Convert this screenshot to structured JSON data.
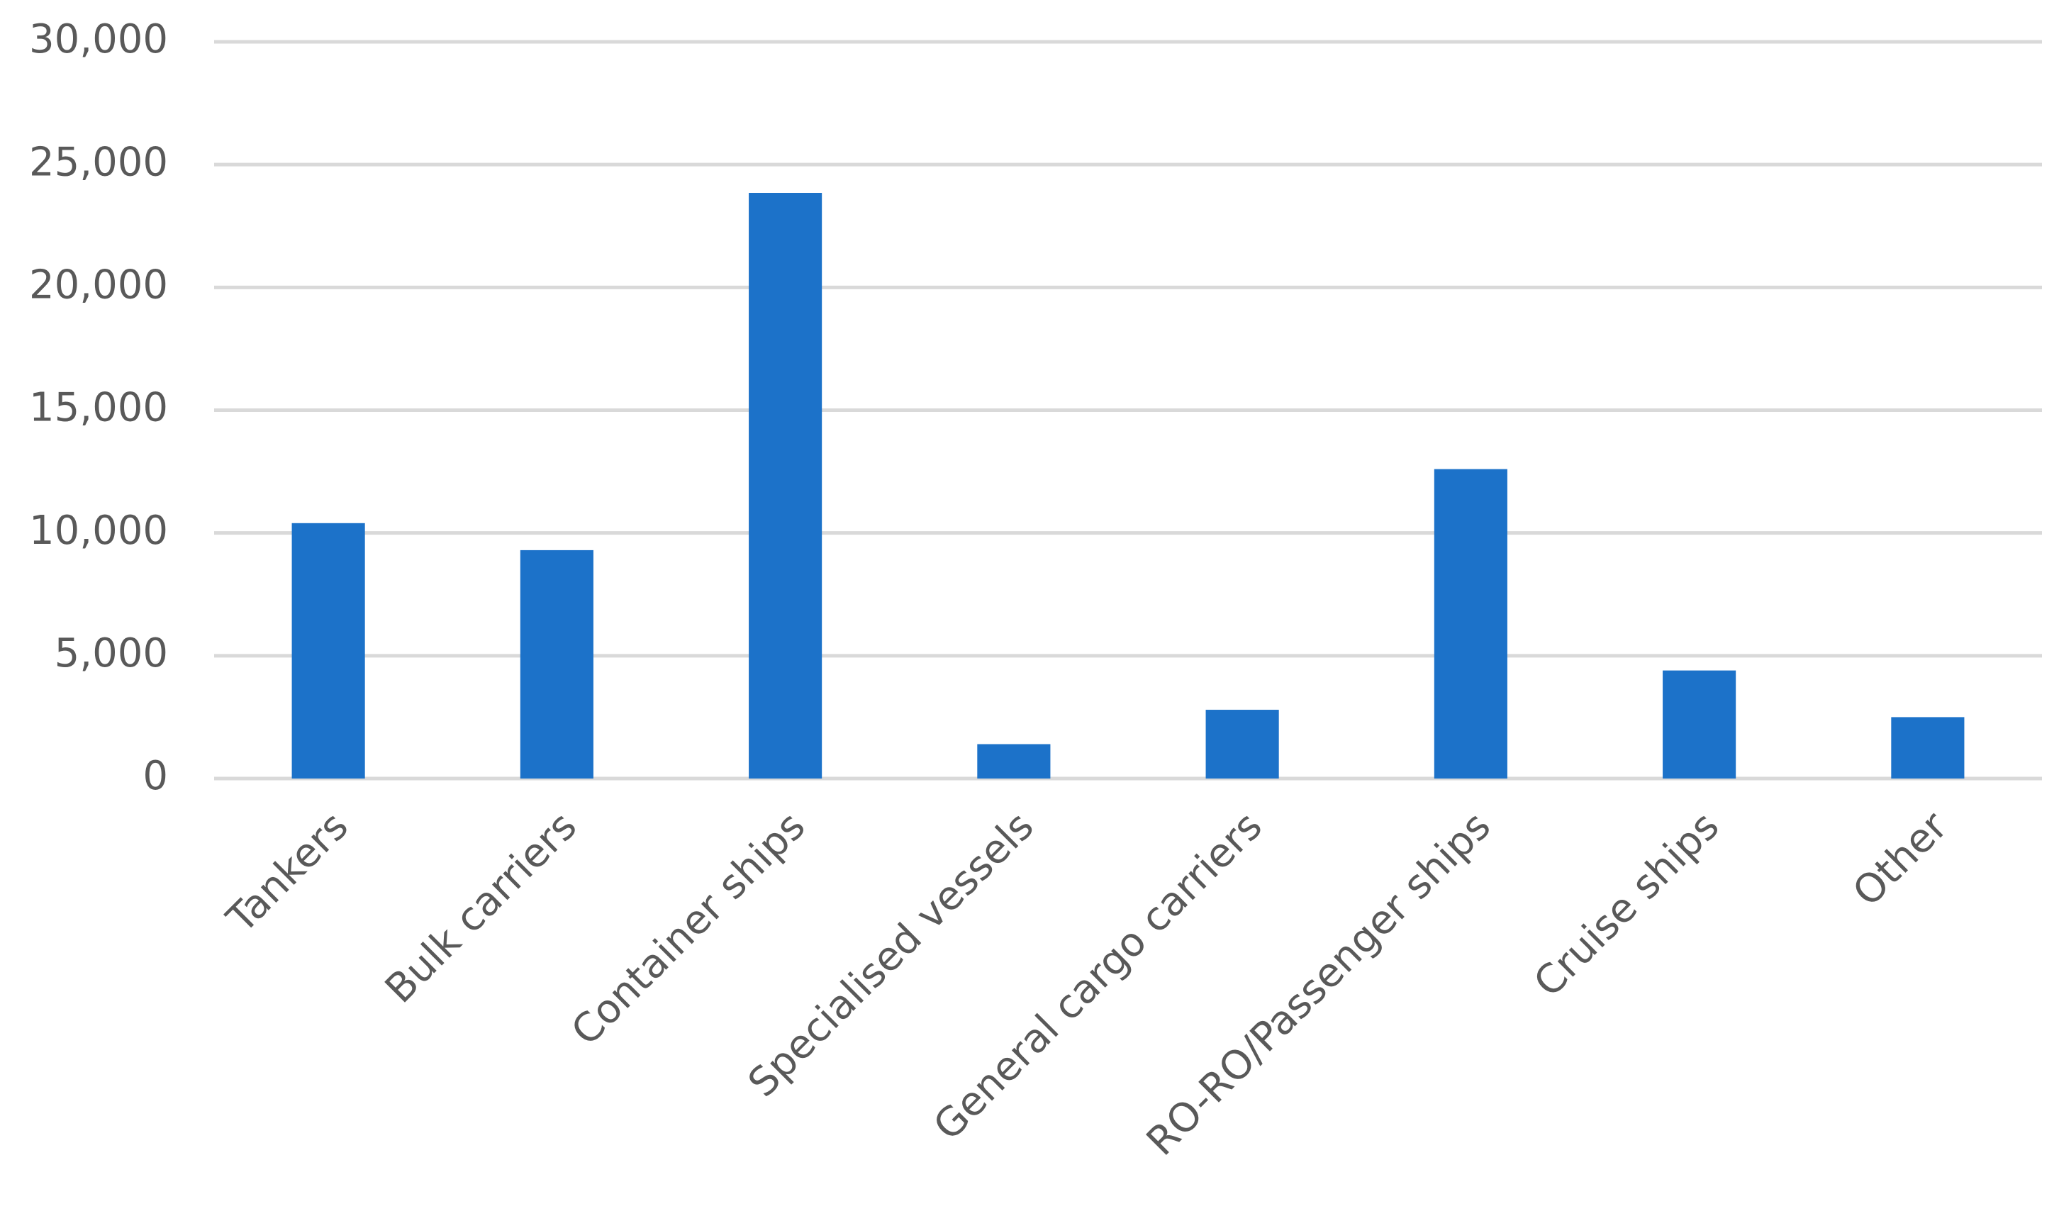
{
  "chart_data": {
    "type": "bar",
    "categories": [
      "Tankers",
      "Bulk carriers",
      "Container ships",
      "Specialised vessels",
      "General cargo carriers",
      "RO-RO/Passenger ships",
      "Cruise ships",
      "Other"
    ],
    "values": [
      10400,
      9300,
      23850,
      1400,
      2800,
      12600,
      4400,
      2500
    ],
    "color": "#1c72c9",
    "ylim": [
      0,
      30000
    ],
    "yticks": [
      0,
      {
        "value": 5000,
        "label": "5,000"
      },
      {
        "value": 10000,
        "label": "10,000"
      },
      {
        "value": 15000,
        "label": "15,000"
      },
      {
        "value": 20000,
        "label": "20,000"
      },
      {
        "value": 25000,
        "label": "25,000"
      },
      {
        "value": 30000,
        "label": "30,000"
      }
    ],
    "grid": true
  }
}
